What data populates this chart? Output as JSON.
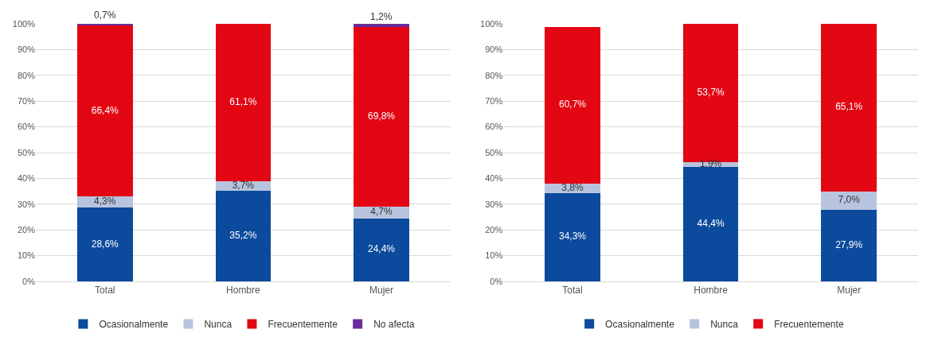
{
  "chart_data": [
    {
      "type": "bar",
      "stacked": true,
      "categories": [
        "Total",
        "Hombre",
        "Mujer"
      ],
      "series": [
        {
          "name": "Ocasionalmente",
          "color": "#0b4a9c",
          "values": [
            28.6,
            35.2,
            24.4
          ],
          "value_labels": [
            "28,6%",
            "35,2%",
            "24,4%"
          ]
        },
        {
          "name": "Nunca",
          "color": "#b8c4de",
          "values": [
            4.3,
            3.7,
            4.7
          ],
          "value_labels": [
            "4,3%",
            "3,7%",
            "4,7%"
          ]
        },
        {
          "name": "Frecuentemente",
          "color": "#e30613",
          "values": [
            66.4,
            61.1,
            69.8
          ],
          "value_labels": [
            "66,4%",
            "61,1%",
            "69,8%"
          ]
        },
        {
          "name": "No afecta",
          "color": "#6a2c9c",
          "values": [
            0.7,
            null,
            1.2
          ],
          "value_labels": [
            "0,7%",
            null,
            "1,2%"
          ]
        }
      ],
      "ylim": [
        0,
        100
      ],
      "yticks": [
        {
          "value": 0,
          "label": "0%"
        },
        {
          "value": 10,
          "label": "10%"
        },
        {
          "value": 20,
          "label": "20%"
        },
        {
          "value": 30,
          "label": "30%"
        },
        {
          "value": 40,
          "label": "40%"
        },
        {
          "value": 50,
          "label": "50%"
        },
        {
          "value": 60,
          "label": "60%"
        },
        {
          "value": 70,
          "label": "70%"
        },
        {
          "value": 80,
          "label": "80%"
        },
        {
          "value": 90,
          "label": "90%"
        },
        {
          "value": 100,
          "label": "100%"
        }
      ],
      "grid": "y",
      "legend": "bottom"
    },
    {
      "type": "bar",
      "stacked": true,
      "categories": [
        "Total",
        "Hombre",
        "Mujer"
      ],
      "series": [
        {
          "name": "Ocasionalmente",
          "color": "#0b4a9c",
          "values": [
            34.3,
            44.4,
            27.9
          ],
          "value_labels": [
            "34,3%",
            "44,4%",
            "27,9%"
          ]
        },
        {
          "name": "Nunca",
          "color": "#b8c4de",
          "values": [
            3.8,
            1.9,
            7.0
          ],
          "value_labels": [
            "3,8%",
            "1,9%",
            "7,0%"
          ]
        },
        {
          "name": "Frecuentemente",
          "color": "#e30613",
          "values": [
            60.7,
            53.7,
            65.1
          ],
          "value_labels": [
            "60,7%",
            "53,7%",
            "65,1%"
          ]
        }
      ],
      "ylim": [
        0,
        100
      ],
      "yticks": [
        {
          "value": 0,
          "label": "0%"
        },
        {
          "value": 10,
          "label": "10%"
        },
        {
          "value": 20,
          "label": "20%"
        },
        {
          "value": 30,
          "label": "30%"
        },
        {
          "value": 40,
          "label": "40%"
        },
        {
          "value": 50,
          "label": "50%"
        },
        {
          "value": 60,
          "label": "60%"
        },
        {
          "value": 70,
          "label": "70%"
        },
        {
          "value": 80,
          "label": "80%"
        },
        {
          "value": 90,
          "label": "90%"
        },
        {
          "value": 100,
          "label": "100%"
        }
      ],
      "grid": "y",
      "legend": "bottom"
    }
  ]
}
